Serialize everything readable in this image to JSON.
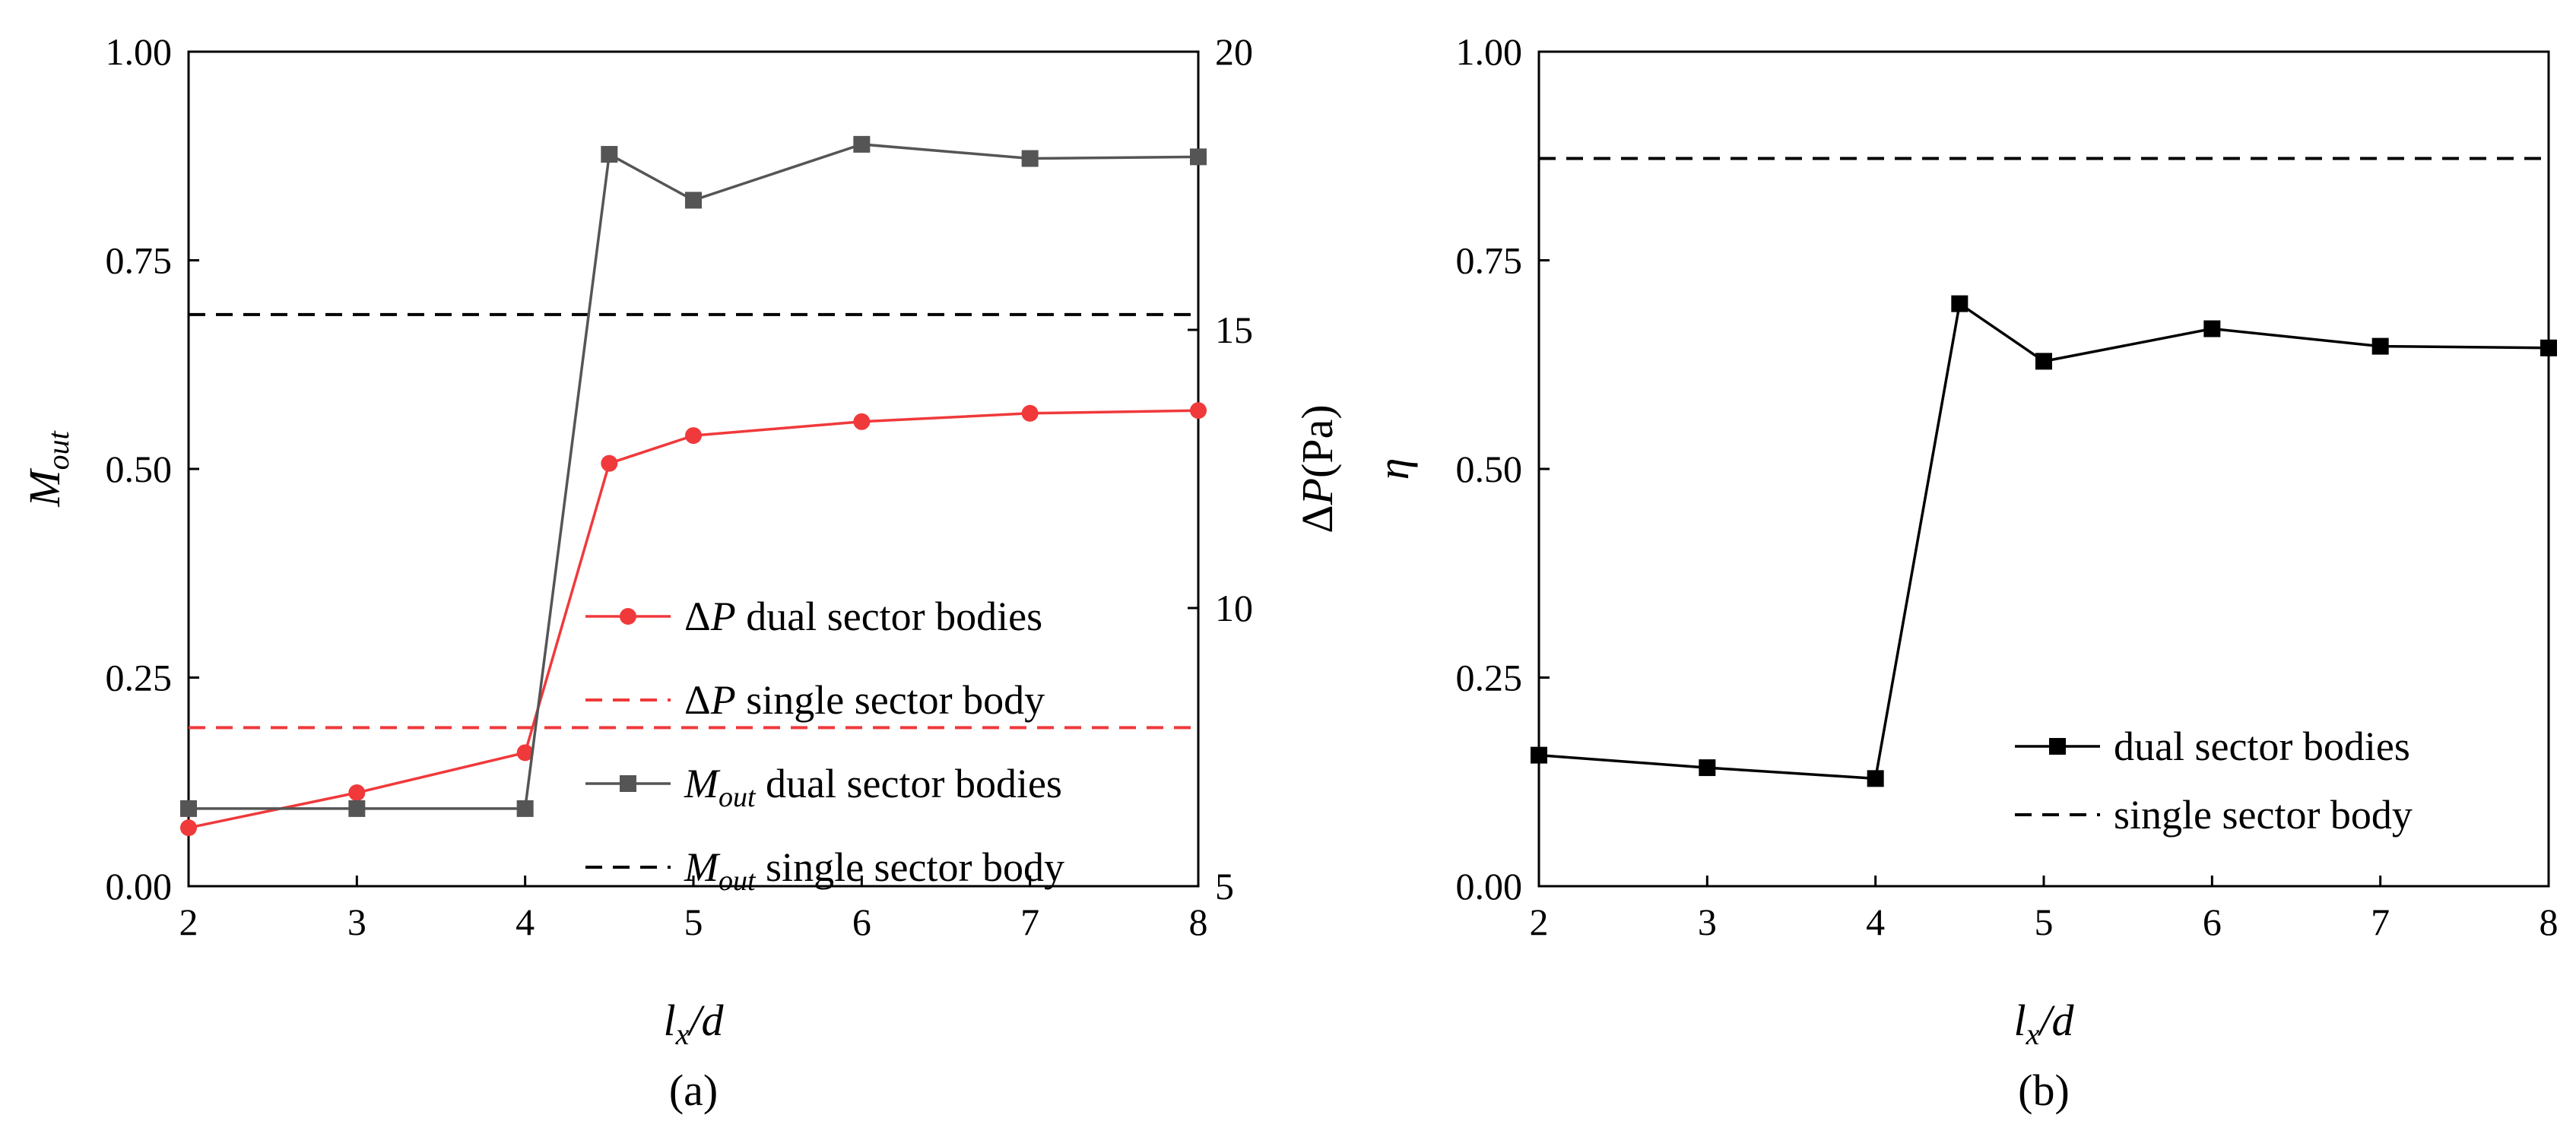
{
  "chart_data": [
    {
      "type": "line",
      "caption": "(a)",
      "xlabel": "l_x/d",
      "xlabel_main": "l",
      "xlabel_sub": "x",
      "xlabel_tail": "/d",
      "ylabel_left_main": "M",
      "ylabel_left_sub": "out",
      "ylabel_right_pre": "Δ",
      "ylabel_right_main": "P",
      "ylabel_right_post": "(Pa)",
      "xlim": [
        2,
        8
      ],
      "ylim_left": [
        0,
        1
      ],
      "ylim_right": [
        5,
        20
      ],
      "xticks": [
        "2",
        "3",
        "4",
        "5",
        "6",
        "7",
        "8"
      ],
      "yticks_left": [
        "0.00",
        "0.25",
        "0.50",
        "0.75",
        "1.00"
      ],
      "yticks_right": [
        "5",
        "10",
        "15",
        "20"
      ],
      "series": [
        {
          "name": "ΔP dual sector bodies",
          "legend_pre": "Δ",
          "legend_main": "P",
          "legend_sub": "",
          "legend_text": " dual sector bodies",
          "axis": "right",
          "color": "#f0393b",
          "marker": "circle",
          "style": "solid",
          "x": [
            2,
            3,
            4,
            4.5,
            5,
            6,
            7,
            8
          ],
          "values": [
            6.05,
            6.68,
            7.4,
            12.6,
            13.1,
            13.35,
            13.5,
            13.55
          ]
        },
        {
          "name": "ΔP single sector body",
          "legend_pre": "Δ",
          "legend_main": "P",
          "legend_sub": "",
          "legend_text": " single sector body",
          "axis": "right",
          "color": "#f0393b",
          "marker": "none",
          "style": "dashed",
          "value": 7.85
        },
        {
          "name": "M_out dual sector bodies",
          "legend_pre": "",
          "legend_main": "M",
          "legend_sub": "out",
          "legend_text": " dual sector bodies",
          "axis": "left",
          "color": "#555555",
          "marker": "square",
          "style": "solid",
          "x": [
            2,
            3,
            4,
            4.5,
            5,
            6,
            7,
            8
          ],
          "values": [
            0.093,
            0.093,
            0.093,
            0.877,
            0.822,
            0.889,
            0.872,
            0.874
          ]
        },
        {
          "name": "M_out single sector body",
          "legend_pre": "",
          "legend_main": "M",
          "legend_sub": "out",
          "legend_text": " single sector body",
          "axis": "left",
          "color": "#000000",
          "marker": "none",
          "style": "dashed",
          "value": 0.685
        }
      ]
    },
    {
      "type": "line",
      "caption": "(b)",
      "xlabel": "l_x/d",
      "xlabel_main": "l",
      "xlabel_sub": "x",
      "xlabel_tail": "/d",
      "ylabel": "η",
      "xlim": [
        2,
        8
      ],
      "ylim": [
        0,
        1
      ],
      "xticks": [
        "2",
        "3",
        "4",
        "5",
        "6",
        "7",
        "8"
      ],
      "yticks": [
        "0.00",
        "0.25",
        "0.50",
        "0.75",
        "1.00"
      ],
      "series": [
        {
          "name": "dual sector bodies",
          "color": "#000000",
          "marker": "square",
          "style": "solid",
          "x": [
            2,
            3,
            4,
            4.5,
            5,
            6,
            7,
            8
          ],
          "values": [
            0.157,
            0.142,
            0.129,
            0.698,
            0.629,
            0.668,
            0.647,
            0.645
          ]
        },
        {
          "name": "single sector body",
          "color": "#000000",
          "marker": "none",
          "style": "dashed",
          "value": 0.872
        }
      ]
    }
  ]
}
